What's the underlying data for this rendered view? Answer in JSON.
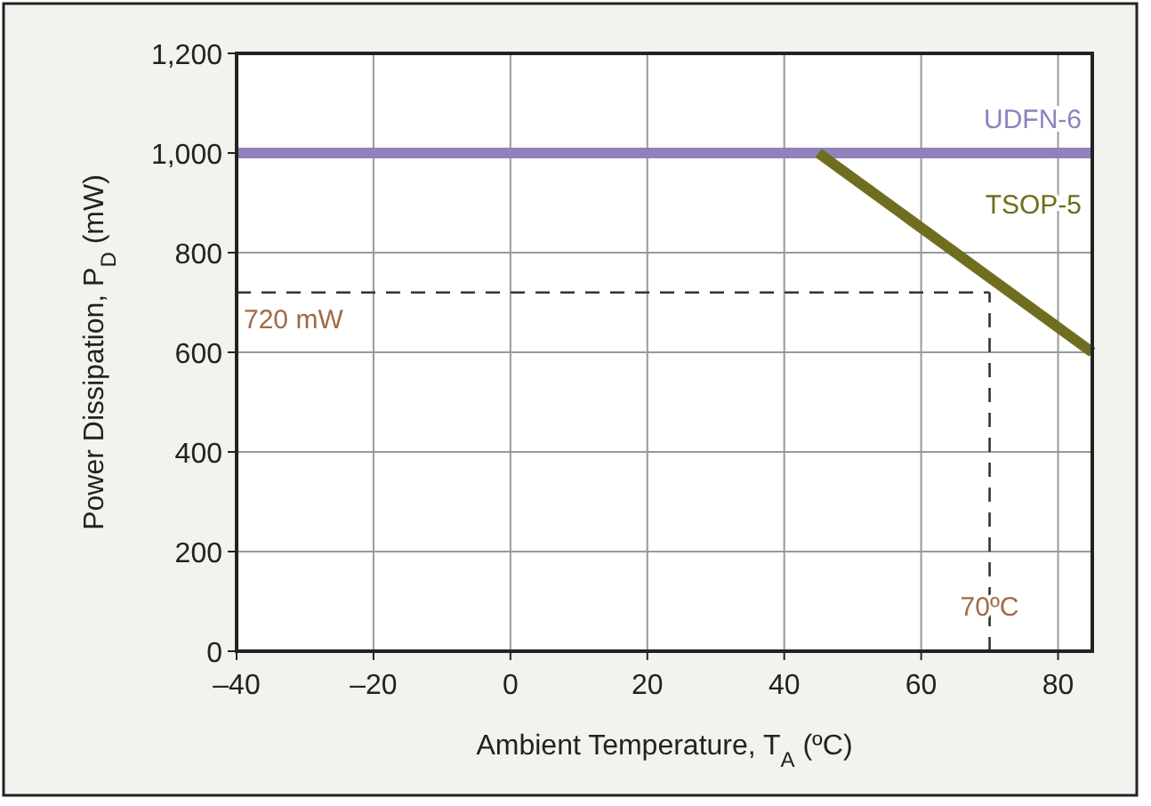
{
  "chart_data": {
    "type": "line",
    "xlabel": "Ambient Temperature, T$_{A}$ (ºC)",
    "ylabel": "Power Dissipation, P$_{D}$ (mW)",
    "xlim": [
      -40,
      85
    ],
    "xticks": [
      {
        "value": -40,
        "label": "–40"
      },
      {
        "value": -20,
        "label": "–20"
      },
      0,
      20,
      40,
      60,
      80
    ],
    "ylim": [
      0,
      1200
    ],
    "yticks": [
      0,
      200,
      400,
      600,
      800,
      {
        "value": 1000,
        "label": "1,000"
      },
      {
        "value": 1200,
        "label": "1,200"
      }
    ],
    "grid": true,
    "legend": false,
    "marker": "none",
    "line_style": "solid",
    "series": [
      {
        "name": "UDFN-6",
        "color": "#8f82bb",
        "x": [
          -40,
          85
        ],
        "values": [
          1000,
          1000
        ]
      },
      {
        "name": "TSOP-5",
        "color": "#6e6e1e",
        "x": [
          45,
          85
        ],
        "values": [
          1000,
          600
        ]
      }
    ],
    "ref_lines": [
      {
        "axis": "y",
        "value": 720,
        "label": "720 mW",
        "color": "#333333",
        "line_style": "dashed"
      },
      {
        "axis": "x",
        "value": 70,
        "label": "70ºC",
        "color": "#333333",
        "line_style": "dashed"
      }
    ]
  }
}
